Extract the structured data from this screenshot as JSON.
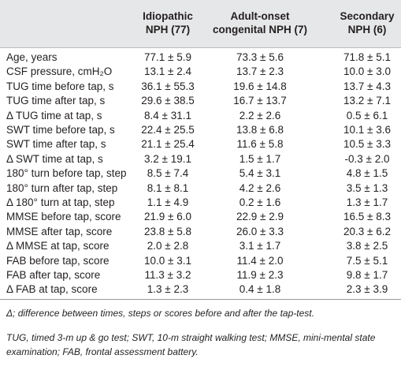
{
  "table": {
    "header": [
      [
        "Idiopathic",
        "NPH (77)"
      ],
      [
        "Adult-onset",
        "congenital NPH (7)"
      ],
      [
        "Secondary",
        "NPH (6)"
      ]
    ],
    "rows": [
      [
        "Age, years",
        "77.1 ± 5.9",
        "73.3 ± 5.6",
        "71.8 ± 5.1"
      ],
      [
        "CSF pressure, cmH₂O",
        "13.1 ± 2.4",
        "13.7 ± 2.3",
        "10.0 ± 3.0"
      ],
      [
        "TUG time before tap, s",
        "36.1 ± 55.3",
        "19.6 ± 14.8",
        "13.7 ± 4.3"
      ],
      [
        "TUG time after tap, s",
        "29.6 ± 38.5",
        "16.7 ± 13.7",
        "13.2 ± 7.1"
      ],
      [
        "Δ TUG time at tap, s",
        "8.4 ± 31.1",
        "2.2 ± 2.6",
        "0.5 ± 6.1"
      ],
      [
        "SWT time before tap, s",
        "22.4 ± 25.5",
        "13.8 ± 6.8",
        "10.1 ± 3.6"
      ],
      [
        "SWT time after tap, s",
        "21.1 ± 25.4",
        "11.6 ± 5.8",
        "10.5 ± 3.3"
      ],
      [
        "Δ SWT time at tap, s",
        "3.2 ± 19.1",
        "1.5 ± 1.7",
        "-0.3 ± 2.0"
      ],
      [
        "180° turn before tap, step",
        "8.5 ± 7.4",
        "5.4 ± 3.1",
        "4.8 ± 1.5"
      ],
      [
        "180° turn after tap, step",
        "8.1 ± 8.1",
        "4.2 ± 2.6",
        "3.5 ± 1.3"
      ],
      [
        "Δ 180° turn at tap, step",
        "1.1 ± 4.9",
        "0.2 ± 1.6",
        "1.3 ± 1.7"
      ],
      [
        "MMSE before tap, score",
        "21.9 ± 6.0",
        "22.9 ± 2.9",
        "16.5 ± 8.3"
      ],
      [
        "MMSE after tap, score",
        "23.8 ± 5.8",
        "26.0 ± 3.3",
        "20.3 ± 6.2"
      ],
      [
        "Δ MMSE at tap, score",
        "2.0 ± 2.8",
        "3.1 ± 1.7",
        "3.8 ± 2.5"
      ],
      [
        "FAB before tap, score",
        "10.0 ± 3.1",
        "11.4 ± 2.0",
        "7.5 ± 5.1"
      ],
      [
        "FAB after tap, score",
        "11.3 ± 3.2",
        "11.9 ± 2.3",
        "9.8 ± 1.7"
      ],
      [
        "Δ FAB at tap, score",
        "1.3 ± 2.3",
        "0.4 ± 1.8",
        "2.3 ± 3.9"
      ]
    ]
  },
  "footnotes": [
    "Δ; difference between times, steps or scores before and after the tap-test.",
    "TUG, timed 3-m up & go test; SWT, 10-m straight walking test; MMSE, mini-mental state examination; FAB, frontal assessment battery."
  ]
}
